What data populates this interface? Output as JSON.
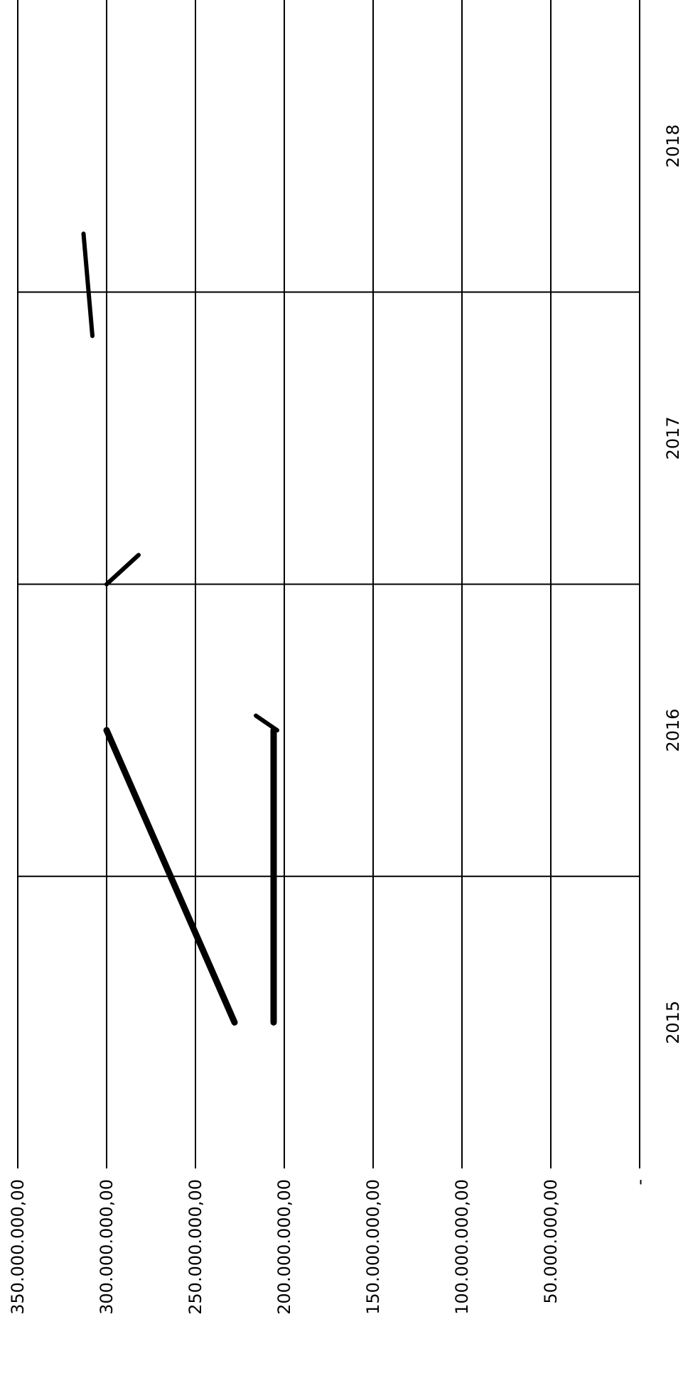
{
  "chart_data": {
    "type": "line",
    "orientation": "rotated-90-clockwise",
    "categories": [
      "2015",
      "2016",
      "2017",
      "2018"
    ],
    "y_tick_labels": [
      "-",
      "50.000.000,00",
      "100.000.000,00",
      "150.000.000,00",
      "200.000.000,00",
      "250.000.000,00",
      "300.000.000,00",
      "350.000.000,00"
    ],
    "ylim": [
      0,
      350000000
    ],
    "grid": true,
    "legend": "none",
    "series": [
      {
        "values": [
          228000000,
          300000000,
          null,
          null
        ],
        "stroke_color": "#000000",
        "extra_segments": [
          {
            "x": [
              1.5,
              1.6
            ],
            "y": [
              300000000,
              282000000
            ]
          },
          {
            "x": [
              1.0,
              1.05
            ],
            "y": [
              204000000,
              216000000
            ]
          }
        ]
      },
      {
        "values": [
          206000000,
          206000000,
          null,
          null
        ],
        "stroke_color": "#000000"
      },
      {
        "values": [
          null,
          null,
          null,
          null
        ],
        "stroke_color": "#000000",
        "extra_segments": [
          {
            "x": [
              2.35,
              2.7
            ],
            "y": [
              308000000,
              313000000
            ]
          }
        ]
      }
    ]
  }
}
